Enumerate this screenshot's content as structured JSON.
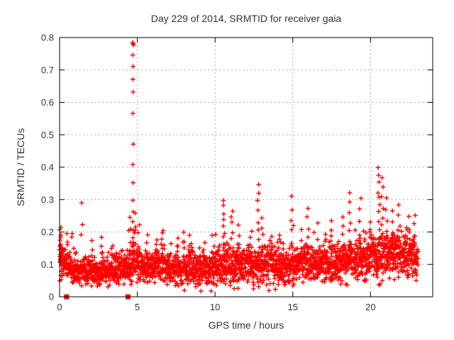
{
  "chart_data": {
    "type": "scatter",
    "title": "Day 229 of 2014, SRMTID for receiver gaia",
    "xlabel": "GPS time / hours",
    "ylabel": "SRMTID / TECUs",
    "xlim": [
      0,
      24
    ],
    "ylim": [
      0,
      0.8
    ],
    "xticks": [
      {
        "v": 0,
        "label": "0"
      },
      {
        "v": 5,
        "label": "5"
      },
      {
        "v": 10,
        "label": "10"
      },
      {
        "v": 15,
        "label": "15"
      },
      {
        "v": 20,
        "label": "20"
      }
    ],
    "yticks": [
      {
        "v": 0.0,
        "label": "0"
      },
      {
        "v": 0.1,
        "label": "0.1"
      },
      {
        "v": 0.2,
        "label": "0.2"
      },
      {
        "v": 0.3,
        "label": "0.3"
      },
      {
        "v": 0.4,
        "label": "0.4"
      },
      {
        "v": 0.5,
        "label": "0.5"
      },
      {
        "v": 0.6,
        "label": "0.6"
      },
      {
        "v": 0.7,
        "label": "0.7"
      },
      {
        "v": 0.8,
        "label": "0.8"
      }
    ],
    "grid": {
      "visible": true,
      "style": "dashed",
      "color": "#a9a9a9"
    },
    "legend": {
      "visible": false
    },
    "marker": {
      "shape": "plus",
      "color": "#ff0000",
      "size": 7,
      "stroke_width": 1.4
    },
    "flag_marker": {
      "shape": "filled-square",
      "color": "#ff0000",
      "size": 7
    },
    "flag_points": [
      [
        0.45,
        0
      ],
      [
        4.4,
        0
      ]
    ],
    "spike_points": [
      [
        4.7,
        0.785
      ],
      [
        4.73,
        0.781
      ],
      [
        4.76,
        0.777
      ],
      [
        4.71,
        0.746
      ],
      [
        4.73,
        0.711
      ],
      [
        4.72,
        0.671
      ],
      [
        4.73,
        0.632
      ],
      [
        4.72,
        0.566
      ],
      [
        4.74,
        0.471
      ],
      [
        4.72,
        0.408
      ],
      [
        4.73,
        0.352
      ],
      [
        4.72,
        0.298
      ],
      [
        4.74,
        0.262
      ],
      [
        4.71,
        0.232
      ],
      [
        4.73,
        0.205
      ],
      [
        4.72,
        0.182
      ],
      [
        4.74,
        0.158
      ],
      [
        4.71,
        0.139
      ],
      [
        4.73,
        0.118
      ]
    ],
    "bursts": [
      [
        0.06,
        16,
        0.05,
        0.22
      ],
      [
        0.5,
        4,
        0.13,
        0.2
      ],
      [
        0.85,
        3,
        0.15,
        0.205
      ],
      [
        1.45,
        3,
        0.185,
        0.28
      ],
      [
        2.1,
        3,
        0.13,
        0.17
      ],
      [
        2.75,
        3,
        0.13,
        0.175
      ],
      [
        3.4,
        3,
        0.13,
        0.165
      ],
      [
        4.5,
        6,
        0.13,
        0.24
      ],
      [
        4.85,
        5,
        0.14,
        0.25
      ],
      [
        5.1,
        4,
        0.13,
        0.22
      ],
      [
        5.6,
        4,
        0.13,
        0.195
      ],
      [
        6.2,
        3,
        0.13,
        0.17
      ],
      [
        6.6,
        4,
        0.14,
        0.205
      ],
      [
        7.1,
        3,
        0.12,
        0.16
      ],
      [
        7.6,
        3,
        0.13,
        0.18
      ],
      [
        8.0,
        5,
        0.13,
        0.19
      ],
      [
        8.4,
        4,
        0.13,
        0.185
      ],
      [
        9.3,
        3,
        0.13,
        0.17
      ],
      [
        10.0,
        3,
        0.14,
        0.19
      ],
      [
        10.55,
        8,
        0.16,
        0.3
      ],
      [
        11.1,
        6,
        0.15,
        0.27
      ],
      [
        11.5,
        4,
        0.14,
        0.22
      ],
      [
        12.3,
        4,
        0.14,
        0.21
      ],
      [
        12.75,
        7,
        0.17,
        0.35
      ],
      [
        13.05,
        4,
        0.15,
        0.25
      ],
      [
        13.6,
        3,
        0.14,
        0.19
      ],
      [
        14.15,
        4,
        0.13,
        0.2
      ],
      [
        14.9,
        5,
        0.16,
        0.31
      ],
      [
        15.5,
        3,
        0.14,
        0.2
      ],
      [
        15.95,
        5,
        0.15,
        0.28
      ],
      [
        16.6,
        3,
        0.14,
        0.22
      ],
      [
        17.1,
        3,
        0.14,
        0.19
      ],
      [
        17.5,
        5,
        0.14,
        0.23
      ],
      [
        18.2,
        4,
        0.15,
        0.25
      ],
      [
        18.65,
        6,
        0.17,
        0.315
      ],
      [
        19.35,
        5,
        0.16,
        0.3
      ],
      [
        20.0,
        4,
        0.15,
        0.24
      ],
      [
        20.55,
        10,
        0.18,
        0.4
      ],
      [
        20.75,
        7,
        0.18,
        0.375
      ],
      [
        21.05,
        5,
        0.16,
        0.3
      ],
      [
        21.45,
        4,
        0.16,
        0.26
      ],
      [
        21.8,
        5,
        0.15,
        0.28
      ],
      [
        22.4,
        4,
        0.14,
        0.25
      ],
      [
        22.85,
        5,
        0.13,
        0.25
      ]
    ],
    "band_keyframes": [
      [
        0.0,
        0.13,
        0.055
      ],
      [
        0.4,
        0.1,
        0.04
      ],
      [
        1.0,
        0.082,
        0.032
      ],
      [
        2.0,
        0.078,
        0.03
      ],
      [
        3.0,
        0.08,
        0.034
      ],
      [
        4.0,
        0.085,
        0.04
      ],
      [
        4.8,
        0.105,
        0.05
      ],
      [
        5.5,
        0.09,
        0.036
      ],
      [
        6.5,
        0.095,
        0.04
      ],
      [
        7.5,
        0.085,
        0.036
      ],
      [
        8.5,
        0.095,
        0.042
      ],
      [
        9.5,
        0.085,
        0.04
      ],
      [
        10.5,
        0.1,
        0.048
      ],
      [
        11.5,
        0.095,
        0.044
      ],
      [
        12.5,
        0.1,
        0.048
      ],
      [
        13.5,
        0.103,
        0.048
      ],
      [
        14.5,
        0.095,
        0.044
      ],
      [
        15.5,
        0.1,
        0.048
      ],
      [
        16.5,
        0.104,
        0.048
      ],
      [
        17.5,
        0.1,
        0.048
      ],
      [
        18.5,
        0.11,
        0.052
      ],
      [
        19.5,
        0.115,
        0.054
      ],
      [
        20.5,
        0.128,
        0.058
      ],
      [
        21.5,
        0.135,
        0.058
      ],
      [
        22.5,
        0.13,
        0.058
      ],
      [
        23.1,
        0.12,
        0.05
      ]
    ],
    "baseline": {
      "n": 2600,
      "t_start": 0.02,
      "t_end": 23.05,
      "seed": 20140229,
      "y_min": 0.018,
      "y_max": 0.45
    }
  },
  "colors": {
    "data": "#ff0000",
    "grid": "#a9a9a9",
    "border": "#000000",
    "text": "#333333",
    "background": "#ffffff"
  }
}
